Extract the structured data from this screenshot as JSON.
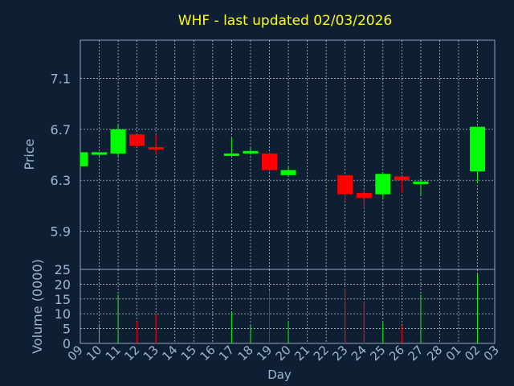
{
  "page": {
    "background": "#0f1f33"
  },
  "chart_data": {
    "type": "candlestick",
    "title": "WHF - last updated 02/03/2026",
    "title_color": "#ffff00",
    "xlabel": "Day",
    "price_panel": {
      "ylabel": "Price",
      "ylim": [
        5.6,
        7.4
      ],
      "ticks": [
        5.9,
        6.3,
        6.7,
        7.1
      ],
      "tick_labels": [
        "5.9",
        "6.3",
        "6.7",
        "7.1"
      ]
    },
    "volume_panel": {
      "ylabel": "Volume (0000)",
      "ylim": [
        0,
        25
      ],
      "ticks": [
        0,
        5,
        10,
        15,
        20,
        25
      ],
      "tick_labels": [
        "0",
        "5",
        "10",
        "15",
        "20",
        "25"
      ]
    },
    "x_tick_labels": [
      "09",
      "10",
      "11",
      "12",
      "13",
      "14",
      "15",
      "16",
      "17",
      "18",
      "19",
      "20",
      "21",
      "22",
      "23",
      "24",
      "25",
      "26",
      "27",
      "28",
      "01",
      "02",
      "03"
    ],
    "grid": true,
    "colors": {
      "up": "#00ff00",
      "down": "#ff0000",
      "axis_text": "#9bb5d3",
      "frame": "#8fa3bd",
      "grid": "#c9d3df"
    },
    "candles": [
      {
        "day": "09",
        "open": 6.41,
        "high": 6.52,
        "low": 6.4,
        "close": 6.52
      },
      {
        "day": "10",
        "open": 6.5,
        "high": 6.52,
        "low": 6.48,
        "close": 6.52
      },
      {
        "day": "11",
        "open": 6.51,
        "high": 6.74,
        "low": 6.48,
        "close": 6.7
      },
      {
        "day": "12",
        "open": 6.66,
        "high": 6.66,
        "low": 6.56,
        "close": 6.57
      },
      {
        "day": "13",
        "open": 6.56,
        "high": 6.66,
        "low": 6.5,
        "close": 6.54
      },
      {
        "day": "17",
        "open": 6.5,
        "high": 6.63,
        "low": 6.49,
        "close": 6.51
      },
      {
        "day": "18",
        "open": 6.51,
        "high": 6.56,
        "low": 6.5,
        "close": 6.53
      },
      {
        "day": "19",
        "open": 6.51,
        "high": 6.52,
        "low": 6.37,
        "close": 6.38
      },
      {
        "day": "20",
        "open": 6.34,
        "high": 6.41,
        "low": 6.33,
        "close": 6.38
      },
      {
        "day": "23",
        "open": 6.34,
        "high": 6.34,
        "low": 6.13,
        "close": 6.19
      },
      {
        "day": "24",
        "open": 6.2,
        "high": 6.22,
        "low": 6.08,
        "close": 6.16
      },
      {
        "day": "25",
        "open": 6.19,
        "high": 6.36,
        "low": 6.15,
        "close": 6.35
      },
      {
        "day": "26",
        "open": 6.33,
        "high": 6.33,
        "low": 6.2,
        "close": 6.3
      },
      {
        "day": "27",
        "open": 6.27,
        "high": 6.31,
        "low": 6.18,
        "close": 6.29
      },
      {
        "day": "02",
        "open": 6.37,
        "high": 6.72,
        "low": 6.28,
        "close": 6.72
      }
    ],
    "volume": [
      {
        "day": "09",
        "value": 0
      },
      {
        "day": "10",
        "value": 6.5
      },
      {
        "day": "11",
        "value": 16.5
      },
      {
        "day": "12",
        "value": 7.5
      },
      {
        "day": "13",
        "value": 10
      },
      {
        "day": "17",
        "value": 10.5
      },
      {
        "day": "18",
        "value": 6
      },
      {
        "day": "19",
        "value": 18
      },
      {
        "day": "20",
        "value": 7.5
      },
      {
        "day": "23",
        "value": 18.5
      },
      {
        "day": "24",
        "value": 14
      },
      {
        "day": "25",
        "value": 7
      },
      {
        "day": "26",
        "value": 6
      },
      {
        "day": "27",
        "value": 16.5
      },
      {
        "day": "02",
        "value": 23.5
      }
    ]
  }
}
